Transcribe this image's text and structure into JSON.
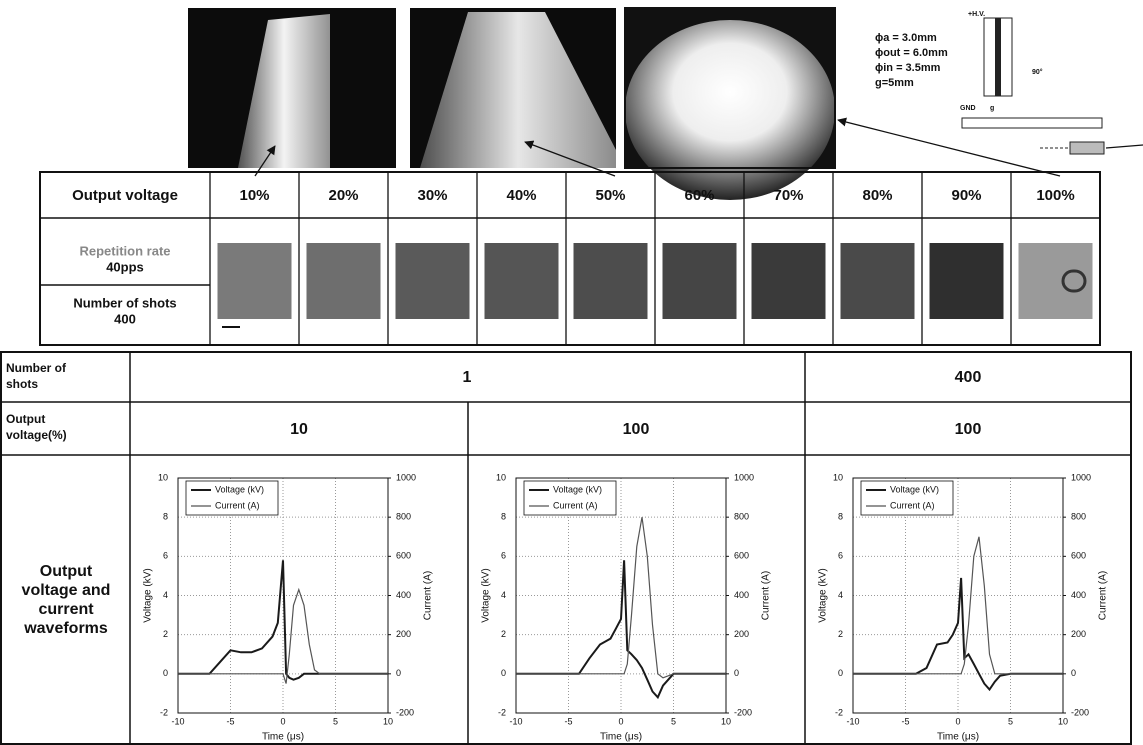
{
  "diagram": {
    "lines": [
      "ϕa = 3.0mm",
      "ϕout = 6.0mm",
      "ϕin = 3.5mm",
      "g=5mm"
    ],
    "hv": "+H.V.",
    "gnd": "GND",
    "gap": "g",
    "angle": "90°"
  },
  "table1": {
    "header": [
      "Output voltage",
      "10%",
      "20%",
      "30%",
      "40%",
      "50%",
      "60%",
      "70%",
      "80%",
      "90%",
      "100%"
    ],
    "row_labels": [
      [
        "Repetition rate",
        "40pps"
      ],
      [
        "Number of shots",
        "400"
      ]
    ]
  },
  "table2": {
    "rows": [
      {
        "label": [
          "Number of",
          "shots"
        ],
        "cells": [
          "1",
          "400"
        ]
      },
      {
        "label": [
          "Output",
          "voltage(%)"
        ],
        "cells": [
          "10",
          "100",
          "100"
        ]
      },
      {
        "label": [
          "Output",
          "voltage and",
          "current",
          "waveforms"
        ]
      }
    ]
  },
  "chart_data": [
    {
      "type": "line",
      "xlabel": "Time (μs)",
      "ylabel": "Voltage (kV)",
      "y2label": "Current (A)",
      "xlim": [
        -10,
        10
      ],
      "xticks": [
        -10,
        -5,
        0,
        5,
        10
      ],
      "ylim": [
        -2,
        10
      ],
      "yticks": [
        -2,
        0,
        2,
        4,
        6,
        8,
        10
      ],
      "y2lim": [
        -200,
        1000
      ],
      "y2ticks": [
        -200,
        0,
        200,
        400,
        600,
        800,
        1000
      ],
      "grid": true,
      "legend": "upper left",
      "x": [
        -10,
        -9,
        -8,
        -7,
        -6,
        -5,
        -4,
        -3,
        -2,
        -1,
        -0.5,
        0,
        0.3,
        0.6,
        1,
        1.5,
        2,
        2.5,
        3,
        3.5,
        4,
        5,
        6,
        8,
        10
      ],
      "series": [
        {
          "name": "Voltage (kV)",
          "color": "#1a1a1a",
          "values": [
            0,
            0,
            0,
            0,
            0.6,
            1.2,
            1.1,
            1.1,
            1.3,
            1.9,
            2.6,
            5.8,
            0,
            -0.2,
            -0.3,
            -0.2,
            0,
            0,
            0,
            0,
            0,
            0,
            0,
            0,
            0
          ]
        },
        {
          "name": "Current (A)",
          "color": "#555555",
          "axis": "y2",
          "values": [
            0,
            0,
            0,
            0,
            0,
            0,
            0,
            0,
            0,
            0,
            0,
            0,
            -50,
            100,
            350,
            430,
            350,
            150,
            20,
            0,
            0,
            0,
            0,
            0,
            0
          ]
        }
      ]
    },
    {
      "type": "line",
      "xlabel": "Time (μs)",
      "ylabel": "Voltage (kV)",
      "y2label": "Current (A)",
      "xlim": [
        -10,
        10
      ],
      "xticks": [
        -10,
        -5,
        0,
        5,
        10
      ],
      "ylim": [
        -2,
        10
      ],
      "yticks": [
        -2,
        0,
        2,
        4,
        6,
        8,
        10
      ],
      "y2lim": [
        -200,
        1000
      ],
      "y2ticks": [
        -200,
        0,
        200,
        400,
        600,
        800,
        1000
      ],
      "grid": true,
      "legend": "upper left",
      "x": [
        -10,
        -9,
        -8,
        -7,
        -6,
        -5,
        -4,
        -3,
        -2,
        -1,
        -0.5,
        0,
        0.3,
        0.6,
        1,
        1.5,
        2,
        2.5,
        3,
        3.5,
        4,
        5,
        6,
        8,
        10
      ],
      "series": [
        {
          "name": "Voltage (kV)",
          "color": "#1a1a1a",
          "values": [
            0,
            0,
            0,
            0,
            0,
            0,
            0,
            0.8,
            1.5,
            1.8,
            2.3,
            2.8,
            5.8,
            1.2,
            1.0,
            0.7,
            0.3,
            -0.3,
            -0.9,
            -1.2,
            -0.6,
            0,
            0,
            0,
            0
          ]
        },
        {
          "name": "Current (A)",
          "color": "#555555",
          "axis": "y2",
          "values": [
            0,
            0,
            0,
            0,
            0,
            0,
            0,
            0,
            0,
            0,
            0,
            0,
            0,
            50,
            300,
            650,
            800,
            600,
            250,
            0,
            -20,
            0,
            0,
            0,
            0
          ]
        }
      ]
    },
    {
      "type": "line",
      "xlabel": "Time (μs)",
      "ylabel": "Voltage (kV)",
      "y2label": "Current (A)",
      "xlim": [
        -10,
        10
      ],
      "xticks": [
        -10,
        -5,
        0,
        5,
        10
      ],
      "ylim": [
        -2,
        10
      ],
      "yticks": [
        -2,
        0,
        2,
        4,
        6,
        8,
        10
      ],
      "y2lim": [
        -200,
        1000
      ],
      "y2ticks": [
        -200,
        0,
        200,
        400,
        600,
        800,
        1000
      ],
      "grid": true,
      "legend": "upper left",
      "x": [
        -10,
        -9,
        -8,
        -7,
        -6,
        -5,
        -4,
        -3,
        -2,
        -1,
        -0.5,
        0,
        0.3,
        0.6,
        1,
        1.5,
        2,
        2.5,
        3,
        3.5,
        4,
        5,
        6,
        8,
        10
      ],
      "series": [
        {
          "name": "Voltage (kV)",
          "color": "#1a1a1a",
          "values": [
            0,
            0,
            0,
            0,
            0,
            0,
            0,
            0.3,
            1.5,
            1.6,
            2.0,
            2.6,
            4.9,
            0.8,
            1.0,
            0.5,
            0,
            -0.5,
            -0.8,
            -0.4,
            -0.1,
            0,
            0,
            0,
            0
          ]
        },
        {
          "name": "Current (A)",
          "color": "#555555",
          "axis": "y2",
          "values": [
            0,
            0,
            0,
            0,
            0,
            0,
            0,
            0,
            0,
            0,
            0,
            0,
            0,
            50,
            250,
            600,
            700,
            450,
            100,
            0,
            0,
            0,
            0,
            0,
            0
          ]
        }
      ]
    }
  ]
}
